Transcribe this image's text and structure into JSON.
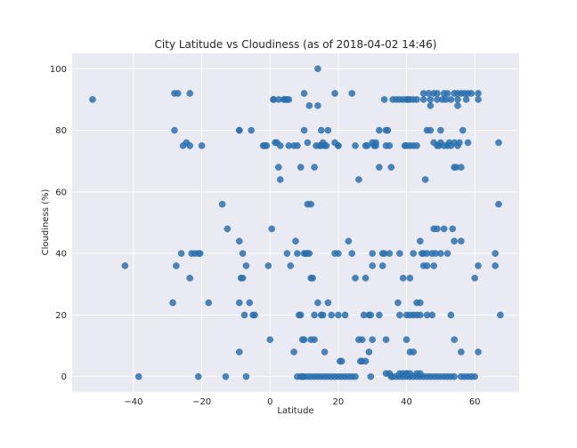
{
  "chart_data": {
    "type": "scatter",
    "title": "City Latitude vs Cloudiness (as of 2018-04-02 14:46)",
    "xlabel": "Latitude",
    "ylabel": "Cloudiness (%)",
    "xlim": [
      -58,
      73
    ],
    "ylim": [
      -5,
      105
    ],
    "xticks": [
      -40,
      -20,
      0,
      20,
      40,
      60
    ],
    "yticks": [
      0,
      20,
      40,
      60,
      80,
      100
    ],
    "grid": true,
    "background": "#eaeaf2",
    "marker_color": "#2a72b2",
    "series": [
      {
        "points": [
          [
            -52,
            90
          ],
          [
            -42.5,
            36
          ],
          [
            -38.5,
            0
          ],
          [
            -28,
            92
          ],
          [
            -27,
            92
          ],
          [
            -23.5,
            92
          ],
          [
            -28,
            80
          ],
          [
            -25.5,
            75
          ],
          [
            -24.5,
            76
          ],
          [
            -23.5,
            75
          ],
          [
            -20,
            75
          ],
          [
            -27.5,
            36
          ],
          [
            -26,
            40
          ],
          [
            -23,
            40
          ],
          [
            -22,
            40
          ],
          [
            -21,
            40
          ],
          [
            -20.5,
            40
          ],
          [
            -23.5,
            32
          ],
          [
            -28.5,
            24
          ],
          [
            -18,
            24
          ],
          [
            -21,
            0
          ],
          [
            -14,
            56
          ],
          [
            -12.5,
            48
          ],
          [
            -9,
            44
          ],
          [
            -8,
            40
          ],
          [
            -9,
            24
          ],
          [
            -8.5,
            32
          ],
          [
            -8,
            32
          ],
          [
            -7.5,
            20
          ],
          [
            -7,
            36
          ],
          [
            -6,
            24
          ],
          [
            -5,
            20
          ],
          [
            -4.5,
            20
          ],
          [
            -9,
            8
          ],
          [
            -13,
            0
          ],
          [
            -7,
            0
          ],
          [
            -9,
            80
          ],
          [
            -9,
            80
          ],
          [
            -5.5,
            80
          ],
          [
            -2,
            75
          ],
          [
            -1.5,
            75
          ],
          [
            -1,
            75
          ],
          [
            -0.5,
            36
          ],
          [
            0,
            12
          ],
          [
            0.5,
            48
          ],
          [
            1,
            90
          ],
          [
            1,
            90
          ],
          [
            1.5,
            76
          ],
          [
            2,
            76
          ],
          [
            2.5,
            68
          ],
          [
            3,
            64
          ],
          [
            3,
            75
          ],
          [
            2.5,
            90
          ],
          [
            4,
            90
          ],
          [
            4.5,
            90
          ],
          [
            5,
            90
          ],
          [
            5.5,
            90
          ],
          [
            5,
            40
          ],
          [
            5.5,
            75
          ],
          [
            6,
            36
          ],
          [
            7,
            75
          ],
          [
            7.5,
            44
          ],
          [
            8,
            40
          ],
          [
            7,
            8
          ],
          [
            8.5,
            20
          ],
          [
            9,
            20
          ],
          [
            9.5,
            12
          ],
          [
            10,
            40
          ],
          [
            10.5,
            40
          ],
          [
            11,
            40
          ],
          [
            11.5,
            40
          ],
          [
            12,
            32
          ],
          [
            12.5,
            32
          ],
          [
            9,
            68
          ],
          [
            8,
            75
          ],
          [
            10,
            80
          ],
          [
            10,
            92
          ],
          [
            11,
            76
          ],
          [
            11,
            56
          ],
          [
            11.5,
            88
          ],
          [
            12,
            56
          ],
          [
            13,
            68
          ],
          [
            13.5,
            75
          ],
          [
            14,
            100
          ],
          [
            14,
            88
          ],
          [
            14.5,
            75
          ],
          [
            15,
            75
          ],
          [
            15,
            80
          ],
          [
            15.5,
            76
          ],
          [
            16,
            75
          ],
          [
            16.5,
            75
          ],
          [
            17,
            80
          ],
          [
            13,
            20
          ],
          [
            14,
            24
          ],
          [
            15,
            20
          ],
          [
            15.5,
            20
          ],
          [
            16,
            8
          ],
          [
            17,
            24
          ],
          [
            18,
            20
          ],
          [
            13,
            12
          ],
          [
            10,
            12
          ],
          [
            12,
            12
          ],
          [
            19,
            76
          ],
          [
            19,
            92
          ],
          [
            20,
            75
          ],
          [
            20,
            75
          ],
          [
            19,
            40
          ],
          [
            20,
            40
          ],
          [
            20,
            20
          ],
          [
            20.5,
            5
          ],
          [
            21,
            5
          ],
          [
            8,
            0
          ],
          [
            9,
            0
          ],
          [
            9.5,
            0
          ],
          [
            10,
            0
          ],
          [
            11,
            0
          ],
          [
            12,
            0
          ],
          [
            13,
            0
          ],
          [
            14,
            0
          ],
          [
            15,
            0
          ],
          [
            16,
            0
          ],
          [
            17,
            0
          ],
          [
            18,
            0
          ],
          [
            19,
            0
          ],
          [
            20,
            0
          ],
          [
            21,
            0
          ],
          [
            22,
            0
          ],
          [
            23,
            0
          ],
          [
            24,
            0
          ],
          [
            25,
            0
          ],
          [
            22,
            20
          ],
          [
            23,
            44
          ],
          [
            24,
            40
          ],
          [
            24,
            92
          ],
          [
            25,
            32
          ],
          [
            25,
            75
          ],
          [
            26,
            64
          ],
          [
            26,
            12
          ],
          [
            26.5,
            5
          ],
          [
            27,
            12
          ],
          [
            27,
            5
          ],
          [
            27.5,
            20
          ],
          [
            28,
            5
          ],
          [
            28,
            32
          ],
          [
            28,
            75
          ],
          [
            28.5,
            75
          ],
          [
            29,
            20
          ],
          [
            29.5,
            20
          ],
          [
            29,
            8
          ],
          [
            29.5,
            0
          ],
          [
            30,
            12
          ],
          [
            30,
            36
          ],
          [
            30,
            40
          ],
          [
            30,
            76
          ],
          [
            30.5,
            75
          ],
          [
            31,
            75
          ],
          [
            31,
            76
          ],
          [
            32,
            68
          ],
          [
            32,
            20
          ],
          [
            32,
            80
          ],
          [
            33,
            36
          ],
          [
            33,
            40
          ],
          [
            33.5,
            90
          ],
          [
            33.5,
            40
          ],
          [
            34,
            75
          ],
          [
            34,
            80
          ],
          [
            34.5,
            80
          ],
          [
            35,
            40
          ],
          [
            35,
            75
          ],
          [
            35.5,
            68
          ],
          [
            34,
            12
          ],
          [
            34,
            1
          ],
          [
            35,
            1
          ],
          [
            35.5,
            0
          ],
          [
            36,
            0
          ],
          [
            36,
            90
          ],
          [
            37,
            90
          ],
          [
            37.5,
            24
          ],
          [
            38,
            20
          ],
          [
            38,
            40
          ],
          [
            38,
            90
          ],
          [
            39,
            90
          ],
          [
            39.5,
            75
          ],
          [
            40,
            75
          ],
          [
            40,
            90
          ],
          [
            40.5,
            90
          ],
          [
            41,
            90
          ],
          [
            42,
            90
          ],
          [
            43,
            90
          ],
          [
            41,
            75
          ],
          [
            42,
            75
          ],
          [
            43,
            75
          ],
          [
            42,
            20
          ],
          [
            40,
            20
          ],
          [
            39,
            32
          ],
          [
            41,
            32
          ],
          [
            41,
            20
          ],
          [
            40,
            1
          ],
          [
            41,
            8
          ],
          [
            42,
            8
          ],
          [
            42,
            40
          ],
          [
            43,
            24
          ],
          [
            43,
            20
          ],
          [
            44,
            24
          ],
          [
            44,
            20
          ],
          [
            44,
            44
          ],
          [
            44.5,
            40
          ],
          [
            45,
            36
          ],
          [
            45,
            40
          ],
          [
            45,
            92
          ],
          [
            45,
            90
          ],
          [
            45.5,
            64
          ],
          [
            46,
            36
          ],
          [
            46,
            40
          ],
          [
            46,
            80
          ],
          [
            46,
            20
          ],
          [
            46.5,
            92
          ],
          [
            47,
            88
          ],
          [
            47,
            90
          ],
          [
            47,
            80
          ],
          [
            47.5,
            40
          ],
          [
            47.5,
            20
          ],
          [
            48,
            76
          ],
          [
            48,
            48
          ],
          [
            48,
            36
          ],
          [
            48.5,
            40
          ],
          [
            48,
            92
          ],
          [
            49,
            90
          ],
          [
            49,
            75
          ],
          [
            49,
            48
          ],
          [
            49,
            92
          ],
          [
            49.5,
            75
          ],
          [
            50,
            76
          ],
          [
            50,
            80
          ],
          [
            50,
            40
          ],
          [
            50.5,
            90
          ],
          [
            51,
            92
          ],
          [
            51,
            75
          ],
          [
            51,
            48
          ],
          [
            51.5,
            90
          ],
          [
            52,
            92
          ],
          [
            52,
            75
          ],
          [
            52,
            40
          ],
          [
            52.5,
            76
          ],
          [
            53,
            90
          ],
          [
            53,
            75
          ],
          [
            53,
            20
          ],
          [
            53.5,
            48
          ],
          [
            54,
            92
          ],
          [
            54,
            76
          ],
          [
            54,
            44
          ],
          [
            54,
            68
          ],
          [
            54.5,
            68
          ],
          [
            55,
            92
          ],
          [
            55,
            88
          ],
          [
            55,
            90
          ],
          [
            55,
            75
          ],
          [
            55.5,
            76
          ],
          [
            56,
            92
          ],
          [
            56,
            44
          ],
          [
            56,
            68
          ],
          [
            56.5,
            80
          ],
          [
            57,
            92
          ],
          [
            57.5,
            90
          ],
          [
            58,
            76
          ],
          [
            58,
            92
          ],
          [
            59,
            92
          ],
          [
            61,
            92
          ],
          [
            61,
            90
          ],
          [
            61,
            36
          ],
          [
            60,
            32
          ],
          [
            61,
            8
          ],
          [
            66,
            40
          ],
          [
            66,
            36
          ],
          [
            67,
            56
          ],
          [
            67,
            76
          ],
          [
            67.5,
            20
          ],
          [
            37,
            0
          ],
          [
            38,
            0
          ],
          [
            39,
            0
          ],
          [
            40,
            0
          ],
          [
            41,
            0
          ],
          [
            42,
            0
          ],
          [
            43,
            0
          ],
          [
            44,
            0
          ],
          [
            45,
            0
          ],
          [
            46,
            0
          ],
          [
            47,
            0
          ],
          [
            48,
            0
          ],
          [
            49,
            0
          ],
          [
            50,
            0
          ],
          [
            51,
            0
          ],
          [
            52,
            0
          ],
          [
            53,
            0
          ],
          [
            54,
            0
          ],
          [
            56,
            0
          ],
          [
            57,
            0
          ],
          [
            58,
            0
          ],
          [
            59,
            0
          ],
          [
            60,
            0
          ],
          [
            38,
            1
          ],
          [
            39,
            1
          ],
          [
            40,
            1
          ],
          [
            41,
            1
          ],
          [
            43,
            1
          ],
          [
            44,
            1
          ],
          [
            56,
            8
          ],
          [
            54,
            12
          ],
          [
            40,
            12
          ]
        ]
      }
    ]
  }
}
